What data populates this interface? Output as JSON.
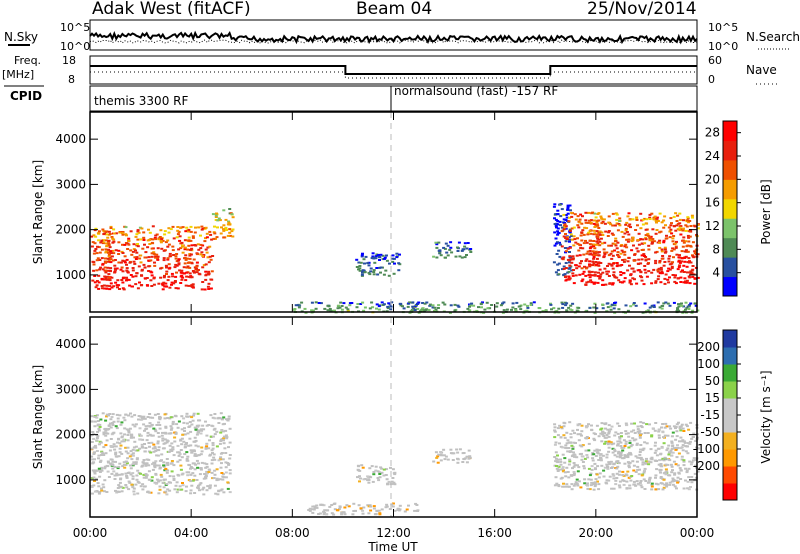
{
  "header": {
    "station": "Adak West (fitACF)",
    "beam": "Beam 04",
    "date": "25/Nov/2014"
  },
  "strip_labels": {
    "nsky": "N.Sky",
    "freq": "Freq.",
    "freq_unit": "[MHz]",
    "cpid": "CPID",
    "nsearch": "N.Search",
    "nave": "Nave",
    "ticks_noise_left": [
      "10^5",
      "10^0"
    ],
    "ticks_noise_right": [
      "10^5",
      "10^0"
    ],
    "ticks_freq_left": [
      "18",
      "8"
    ],
    "ticks_freq_right": [
      "60",
      "0"
    ]
  },
  "cpid_segments": [
    {
      "label": "themis 3300 RF",
      "start_hour": 0,
      "end_hour": 12
    },
    {
      "label": "normalsound (fast) -157 RF",
      "start_hour": 12,
      "end_hour": 24
    }
  ],
  "colors": {
    "power_scale": [
      "#0000ff",
      "#2850a0",
      "#4f8a55",
      "#7cc36b",
      "#f1d700",
      "#f59c00",
      "#ef5000",
      "#e81f0d",
      "#ff0000"
    ],
    "velocity_scale": [
      "#ff0000",
      "#ff4a00",
      "#ff9900",
      "#f3b020",
      "#c8c8c8",
      "#c8c8c8",
      "#8bd24a",
      "#3aaa35",
      "#2d6eb0",
      "#203aa0"
    ],
    "ground_scatter": "#c0c0c0"
  },
  "chart_data": [
    {
      "type": "heatmap",
      "panel": "power",
      "xlabel": "",
      "ylabel": "Slant Range [km]",
      "x_range_hours": [
        0,
        24
      ],
      "ylim": [
        180,
        4600
      ],
      "yticks": [
        "1000",
        "2000",
        "3000",
        "4000"
      ],
      "colorbar_label": "Power [dB]",
      "colorbar_ticks": [
        "4",
        "8",
        "12",
        "16",
        "20",
        "24",
        "28"
      ],
      "colorbar_range": [
        0,
        30
      ],
      "echo_regions": [
        {
          "t0": 0.0,
          "t1": 4.8,
          "r0": 700,
          "r1": 2100,
          "value": 27
        },
        {
          "t0": 4.8,
          "t1": 5.6,
          "r0": 1800,
          "r1": 2500,
          "value": 20
        },
        {
          "t0": 10.4,
          "t1": 12.2,
          "r0": 1000,
          "r1": 1500,
          "value": 8
        },
        {
          "t0": 13.5,
          "t1": 15.0,
          "r0": 1400,
          "r1": 1750,
          "value": 10
        },
        {
          "t0": 18.3,
          "t1": 19.0,
          "r0": 1000,
          "r1": 2600,
          "value": 6
        },
        {
          "t0": 18.6,
          "t1": 24.0,
          "r0": 800,
          "r1": 2400,
          "value": 27
        },
        {
          "t0": 8.0,
          "t1": 24.0,
          "r0": 180,
          "r1": 420,
          "value": 12
        }
      ]
    },
    {
      "type": "heatmap",
      "panel": "velocity",
      "xlabel": "Time UT",
      "ylabel": "Slant Range [km]",
      "x_range_hours": [
        0,
        24
      ],
      "ylim": [
        180,
        4600
      ],
      "yticks": [
        "1000",
        "2000",
        "3000",
        "4000"
      ],
      "xticks": [
        "00:00",
        "04:00",
        "08:00",
        "12:00",
        "16:00",
        "20:00",
        "00:00"
      ],
      "colorbar_label": "Velocity [m s⁻¹]",
      "colorbar_ticks": [
        "200",
        "100",
        "50",
        "15",
        "-15",
        "-50",
        "-100",
        "-200"
      ],
      "echo_regions": [
        {
          "t0": 0.0,
          "t1": 5.5,
          "r0": 700,
          "r1": 2500,
          "value": 0
        },
        {
          "t0": 10.5,
          "t1": 12.0,
          "r0": 900,
          "r1": 1350,
          "value": 0
        },
        {
          "t0": 13.5,
          "t1": 15.0,
          "r0": 1400,
          "r1": 1700,
          "value": -30
        },
        {
          "t0": 18.3,
          "t1": 24.0,
          "r0": 800,
          "r1": 2300,
          "value": 0
        },
        {
          "t0": 8.5,
          "t1": 13.0,
          "r0": 250,
          "r1": 500,
          "value": -40
        }
      ]
    }
  ]
}
